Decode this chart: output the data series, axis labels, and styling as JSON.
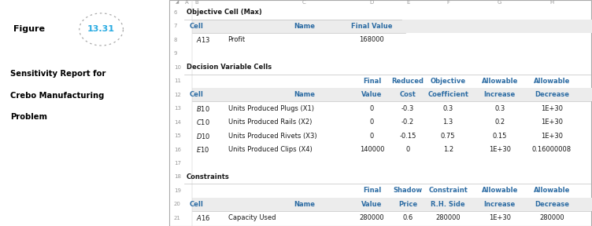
{
  "figure_label": "Figure",
  "figure_number": "13.31",
  "caption_lines": [
    "Sensitivity Report for",
    "Crebo Manufacturing",
    "Problem"
  ],
  "header_blue": "#2e6da4",
  "figure_number_color": "#29abe2",
  "dotted_circle_color": "#aaaaaa",
  "section1_label": "Objective Cell (Max)",
  "obj_headers": [
    "Cell",
    "Name",
    "Final Value"
  ],
  "obj_data_row": [
    "$A$13",
    "Profit",
    "168000"
  ],
  "section2_label": "Decision Variable Cells",
  "dv_headers_top": [
    "Final",
    "Reduced",
    "Objective",
    "Allowable",
    "Allowable"
  ],
  "dv_headers_bot": [
    "Cell",
    "Name",
    "Value",
    "Cost",
    "Coefficient",
    "Increase",
    "Decrease"
  ],
  "dv_data": [
    [
      "$B$10",
      "Units Produced Plugs (X1)",
      "0",
      "-0.3",
      "0.3",
      "0.3",
      "1E+30"
    ],
    [
      "$C$10",
      "Units Produced Rails (X2)",
      "0",
      "-0.2",
      "1.3",
      "0.2",
      "1E+30"
    ],
    [
      "$D$10",
      "Units Produced Rivets (X3)",
      "0",
      "-0.15",
      "0.75",
      "0.15",
      "1E+30"
    ],
    [
      "$E$10",
      "Units Produced Clips (X4)",
      "140000",
      "0",
      "1.2",
      "1E+30",
      "0.16000008"
    ]
  ],
  "section3_label": "Constraints",
  "con_headers_top": [
    "Final",
    "Shadow",
    "Constraint",
    "Allowable",
    "Allowable"
  ],
  "con_headers_bot": [
    "Cell",
    "Name",
    "Value",
    "Price",
    "R.H. Side",
    "Increase",
    "Decrease"
  ],
  "con_data": [
    [
      "$A$16",
      "Capacity Used",
      "280000",
      "0.6",
      "280000",
      "1E+30",
      "280000"
    ]
  ],
  "col_letters": [
    "A",
    "B",
    "C",
    "D",
    "E",
    "F",
    "G",
    "H"
  ],
  "row_numbers": [
    6,
    7,
    8,
    9,
    10,
    11,
    12,
    13,
    14,
    15,
    16,
    17,
    18,
    19,
    20,
    21
  ]
}
